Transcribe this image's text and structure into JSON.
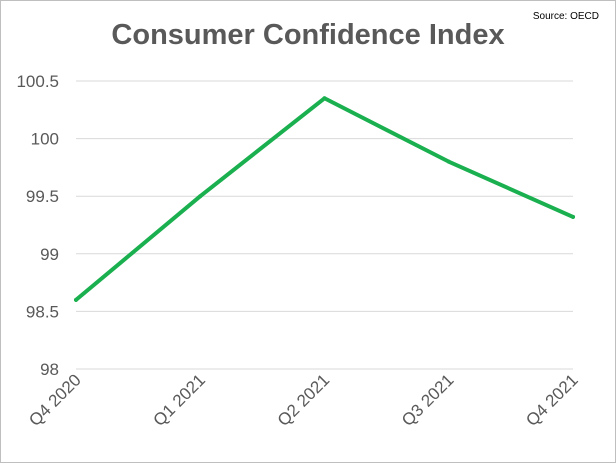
{
  "chart_data": {
    "type": "line",
    "title": "Consumer Confidence Index",
    "source_note": "Source: OECD",
    "xlabel": "",
    "ylabel": "",
    "categories": [
      "Q4 2020",
      "Q1 2021",
      "Q2 2021",
      "Q3 2021",
      "Q4 2021"
    ],
    "series": [
      {
        "values": [
          98.6,
          99.5,
          100.35,
          99.8,
          99.32
        ]
      }
    ],
    "ylim": [
      98,
      100.5
    ],
    "yticks": [
      "98",
      "98.5",
      "99",
      "99.5",
      "100",
      "100.5"
    ],
    "grid": true,
    "legend": "none",
    "line_color": "#1ab04f",
    "grid_color": "#d9d9d9",
    "text_color": "#595959"
  }
}
